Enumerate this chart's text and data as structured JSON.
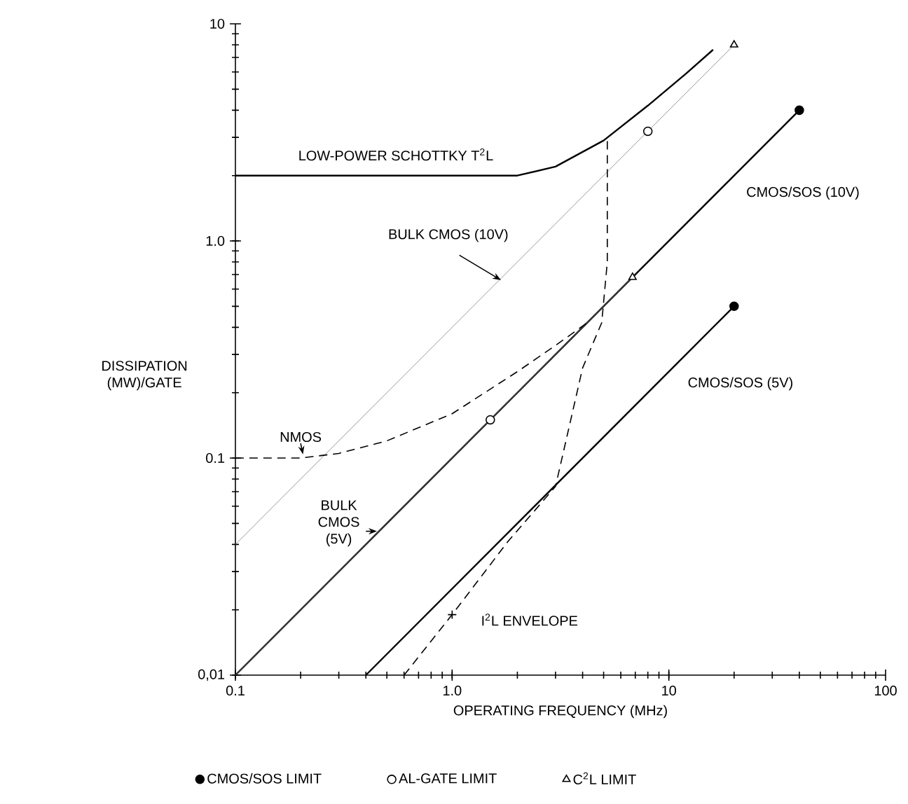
{
  "chart_data": {
    "type": "line",
    "xlabel": "OPERATING FREQUENCY (MHz)",
    "ylabel": "DISSIPATION (MW)/GATE",
    "log": "xy",
    "xlim": [
      0.1,
      100
    ],
    "ylim": [
      0.01,
      10
    ],
    "xticks": [
      0.1,
      {
        "value": 1,
        "label": "1.0"
      },
      10,
      100
    ],
    "yticks": [
      {
        "value": 0.01,
        "label": "0,01"
      },
      0.1,
      {
        "value": 1,
        "label": "1.0"
      },
      10
    ],
    "legend": "bottom",
    "line_style": "solid",
    "series": [
      {
        "name": "LOW-POWER SCHOTTKY T$^{2}$L",
        "color": "#000000",
        "x": [
          0.1,
          2,
          3,
          5,
          8,
          12,
          16
        ],
        "values": [
          2,
          2,
          2.2,
          2.9,
          4.2,
          5.9,
          7.6
        ]
      },
      {
        "name": "BULK CMOS (10V)",
        "color": "#808080",
        "x": [
          0.1,
          20
        ],
        "values": [
          0.04,
          8
        ]
      },
      {
        "name": "BULK CMOS (5V)",
        "color": "#808080",
        "x": [
          0.1,
          6.8
        ],
        "values": [
          0.01,
          0.68
        ]
      },
      {
        "name": "NMOS",
        "color": "#000000",
        "line_style": "dashed",
        "x": [
          0.1,
          0.2,
          0.3,
          0.5,
          1.0,
          2,
          3,
          4.2
        ],
        "values": [
          0.1,
          0.1,
          0.105,
          0.12,
          0.16,
          0.25,
          0.33,
          0.42
        ]
      },
      {
        "name": "CMOS/SOS (10V)",
        "color": "#000000",
        "x": [
          0.1,
          40
        ],
        "values": [
          0.01,
          4
        ]
      },
      {
        "name": "CMOS/SOS (5V)",
        "color": "#000000",
        "x": [
          0.4,
          20
        ],
        "values": [
          0.01,
          0.5
        ]
      },
      {
        "name": "I$^{2}$L ENVELOPE",
        "color": "#000000",
        "line_style": "dashed",
        "x": [
          0.6,
          1.0,
          1.8,
          3.0,
          4.0,
          4.9,
          5.2,
          5.2
        ],
        "values": [
          0.01,
          0.019,
          0.041,
          0.074,
          0.26,
          0.42,
          0.8,
          2.9
        ]
      },
      {
        "name": "CMOS/SOS LIMIT",
        "type": "scatter",
        "marker": "circle",
        "color": "#000000",
        "x": [
          40,
          20
        ],
        "values": [
          4,
          0.5
        ]
      },
      {
        "name": "AL-GATE LIMIT",
        "type": "scatter",
        "marker": "circle",
        "color": "#000000",
        "x": [
          8,
          1.5
        ],
        "values": [
          3.2,
          0.15
        ]
      },
      {
        "name": "C$^{2}$L LIMIT",
        "type": "scatter",
        "marker": "triangle",
        "color": "#000000",
        "x": [
          20,
          6.8
        ],
        "values": [
          8,
          0.68
        ]
      },
      {
        "type": "scatter",
        "marker": "cross",
        "color": "#000000",
        "x": [
          1.0
        ],
        "values": [
          0.019
        ]
      }
    ]
  }
}
